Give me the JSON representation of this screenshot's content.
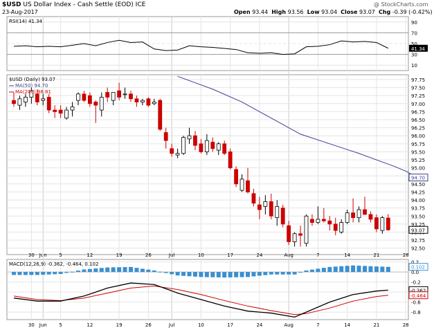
{
  "header": {
    "symbol": "$USD",
    "name": "US Dollar Index - Cash Settle (EOD) ICE",
    "date": "23-Aug-2017",
    "watermark": "@ StockCharts.com",
    "open_label": "Open",
    "open": "93.44",
    "high_label": "High",
    "high": "93.56",
    "low_label": "Low",
    "low": "93.04",
    "close_label": "Close",
    "close": "93.07",
    "chg_label": "Chg",
    "chg": "-0.39 (-0.42%)"
  },
  "rsi_panel": {
    "label": "RSI(14) 41.34",
    "badge": "41.34",
    "ticks": [
      "90",
      "70",
      "50",
      "30",
      "10"
    ]
  },
  "price_panel": {
    "label": "$USD (Daily) 93.07",
    "ma50_label": "MA(50) 94.70",
    "ma200_label": "MA(200) 98.81",
    "ma50_badge": "94.70",
    "close_badge": "93.07",
    "ticks": [
      "97.75",
      "97.50",
      "97.25",
      "97.00",
      "96.75",
      "96.50",
      "96.25",
      "96.00",
      "95.75",
      "95.50",
      "95.25",
      "95.00",
      "94.75",
      "94.50",
      "94.25",
      "94.00",
      "93.75",
      "93.50",
      "93.25",
      "93.00",
      "92.75",
      "92.50"
    ]
  },
  "macd_panel": {
    "label": "MACD(12,26,9) -0.362, -0.464, 0.102",
    "ticks": [
      "0.2",
      "0.0",
      "-0.2",
      "-0.4",
      "-0.6",
      "-0.8"
    ],
    "macd_badge": "-0.362",
    "signal_badge": "-0.464",
    "hist_badge": "0.102"
  },
  "x_labels": [
    "30",
    "Jun",
    "5",
    "12",
    "19",
    "26",
    "Jul",
    "10",
    "17",
    "24",
    "Aug",
    "7",
    "14",
    "21",
    "28"
  ],
  "colors": {
    "up": "#ffffff",
    "down": "#cc0000",
    "ma50": "#3a3f8f",
    "ma200": "#cc0000",
    "macd": "#000000",
    "signal": "#cc0000",
    "hist": "#3a8fd0",
    "rsi_fill": "#7a1a2a"
  },
  "chart_data": [
    {
      "type": "candlestick",
      "title": "$USD (Daily) 93.07",
      "ylim": [
        92.3,
        97.9
      ],
      "series": [
        {
          "name": "MA(50) 94.70",
          "x": [
            29,
            35,
            40,
            45,
            50,
            55,
            60,
            63,
            66,
            68,
            70
          ],
          "values": [
            97.85,
            97.45,
            97.05,
            96.55,
            96.05,
            95.75,
            95.45,
            95.25,
            95.05,
            94.9,
            94.7
          ]
        }
      ],
      "candles": [
        {
          "x": 1,
          "open": 97.1,
          "high": 97.35,
          "low": 96.9,
          "close": 97.0
        },
        {
          "x": 2,
          "open": 96.95,
          "high": 97.25,
          "low": 96.8,
          "close": 97.15
        },
        {
          "x": 3,
          "open": 97.05,
          "high": 97.3,
          "low": 96.9,
          "close": 97.2
        },
        {
          "x": 4,
          "open": 97.2,
          "high": 97.5,
          "low": 97.0,
          "close": 97.4
        },
        {
          "x": 5,
          "open": 97.3,
          "high": 97.45,
          "low": 96.95,
          "close": 97.05
        },
        {
          "x": 6,
          "open": 97.1,
          "high": 97.3,
          "low": 96.95,
          "close": 97.15
        },
        {
          "x": 7,
          "open": 97.2,
          "high": 97.3,
          "low": 96.7,
          "close": 96.8
        },
        {
          "x": 8,
          "open": 96.8,
          "high": 96.95,
          "low": 96.55,
          "close": 96.75
        },
        {
          "x": 9,
          "open": 96.8,
          "high": 96.95,
          "low": 96.55,
          "close": 96.7
        },
        {
          "x": 10,
          "open": 96.55,
          "high": 96.9,
          "low": 96.5,
          "close": 96.8
        },
        {
          "x": 11,
          "open": 96.8,
          "high": 97.05,
          "low": 96.6,
          "close": 96.9
        },
        {
          "x": 12,
          "open": 97.1,
          "high": 97.35,
          "low": 96.95,
          "close": 97.3
        },
        {
          "x": 13,
          "open": 97.3,
          "high": 97.4,
          "low": 97.05,
          "close": 97.1
        },
        {
          "x": 14,
          "open": 97.25,
          "high": 97.35,
          "low": 96.9,
          "close": 97.0
        },
        {
          "x": 15,
          "open": 97.05,
          "high": 97.1,
          "low": 96.4,
          "close": 96.95
        },
        {
          "x": 16,
          "open": 96.8,
          "high": 97.35,
          "low": 96.6,
          "close": 97.2
        },
        {
          "x": 17,
          "open": 97.35,
          "high": 97.5,
          "low": 97.05,
          "close": 97.2
        },
        {
          "x": 18,
          "open": 97.1,
          "high": 97.35,
          "low": 96.95,
          "close": 97.35
        },
        {
          "x": 19,
          "open": 97.4,
          "high": 97.65,
          "low": 97.1,
          "close": 97.2
        },
        {
          "x": 20,
          "open": 97.3,
          "high": 97.5,
          "low": 97.15,
          "close": 97.3
        },
        {
          "x": 21,
          "open": 97.3,
          "high": 97.4,
          "low": 97.05,
          "close": 97.15
        },
        {
          "x": 22,
          "open": 97.15,
          "high": 97.25,
          "low": 96.9,
          "close": 97.05
        },
        {
          "x": 23,
          "open": 97.05,
          "high": 97.15,
          "low": 96.95,
          "close": 97.1
        },
        {
          "x": 24,
          "open": 97.15,
          "high": 97.2,
          "low": 96.9,
          "close": 96.95
        },
        {
          "x": 25,
          "open": 97.0,
          "high": 97.15,
          "low": 96.95,
          "close": 97.05
        },
        {
          "x": 26,
          "open": 97.1,
          "high": 97.15,
          "low": 96.15,
          "close": 96.2
        },
        {
          "x": 27,
          "open": 96.1,
          "high": 96.25,
          "low": 95.6,
          "close": 95.85
        },
        {
          "x": 28,
          "open": 95.6,
          "high": 95.75,
          "low": 95.35,
          "close": 95.45
        },
        {
          "x": 29,
          "open": 95.4,
          "high": 95.6,
          "low": 95.3,
          "close": 95.45
        },
        {
          "x": 30,
          "open": 95.45,
          "high": 96.0,
          "low": 95.4,
          "close": 95.95
        },
        {
          "x": 31,
          "open": 95.9,
          "high": 96.25,
          "low": 95.75,
          "close": 96.0
        },
        {
          "x": 32,
          "open": 96.0,
          "high": 96.15,
          "low": 95.55,
          "close": 95.7
        },
        {
          "x": 33,
          "open": 95.75,
          "high": 95.9,
          "low": 95.45,
          "close": 95.5
        },
        {
          "x": 34,
          "open": 95.5,
          "high": 96.05,
          "low": 95.4,
          "close": 95.85
        },
        {
          "x": 35,
          "open": 95.8,
          "high": 95.95,
          "low": 95.5,
          "close": 95.6
        },
        {
          "x": 36,
          "open": 95.55,
          "high": 95.8,
          "low": 95.4,
          "close": 95.75
        },
        {
          "x": 37,
          "open": 95.75,
          "high": 95.85,
          "low": 95.4,
          "close": 95.45
        },
        {
          "x": 38,
          "open": 95.5,
          "high": 95.6,
          "low": 94.95,
          "close": 95.0
        },
        {
          "x": 39,
          "open": 94.95,
          "high": 95.05,
          "low": 94.4,
          "close": 94.5
        },
        {
          "x": 40,
          "open": 94.3,
          "high": 94.8,
          "low": 94.25,
          "close": 94.65
        },
        {
          "x": 41,
          "open": 94.6,
          "high": 95.0,
          "low": 94.2,
          "close": 94.25
        },
        {
          "x": 42,
          "open": 94.2,
          "high": 94.35,
          "low": 93.8,
          "close": 93.9
        },
        {
          "x": 43,
          "open": 93.85,
          "high": 94.1,
          "low": 93.4,
          "close": 93.7
        },
        {
          "x": 44,
          "open": 93.8,
          "high": 94.15,
          "low": 93.55,
          "close": 93.95
        },
        {
          "x": 45,
          "open": 93.95,
          "high": 94.2,
          "low": 93.4,
          "close": 93.5
        },
        {
          "x": 46,
          "open": 93.45,
          "high": 94.0,
          "low": 93.2,
          "close": 93.8
        },
        {
          "x": 47,
          "open": 93.75,
          "high": 93.85,
          "low": 93.15,
          "close": 93.25
        },
        {
          "x": 48,
          "open": 93.2,
          "high": 93.35,
          "low": 92.6,
          "close": 92.7
        },
        {
          "x": 49,
          "open": 92.7,
          "high": 93.0,
          "low": 92.55,
          "close": 92.95
        },
        {
          "x": 50,
          "open": 92.95,
          "high": 93.2,
          "low": 92.55,
          "close": 92.9
        },
        {
          "x": 51,
          "open": 92.65,
          "high": 93.55,
          "low": 92.55,
          "close": 93.5
        },
        {
          "x": 52,
          "open": 93.4,
          "high": 93.55,
          "low": 93.2,
          "close": 93.3
        },
        {
          "x": 53,
          "open": 93.3,
          "high": 93.8,
          "low": 93.25,
          "close": 93.4
        },
        {
          "x": 54,
          "open": 93.4,
          "high": 93.75,
          "low": 93.3,
          "close": 93.35
        },
        {
          "x": 55,
          "open": 93.35,
          "high": 93.5,
          "low": 93.05,
          "close": 93.25
        },
        {
          "x": 56,
          "open": 93.25,
          "high": 93.45,
          "low": 92.9,
          "close": 93.05
        },
        {
          "x": 57,
          "open": 93.0,
          "high": 93.4,
          "low": 92.95,
          "close": 93.3
        },
        {
          "x": 58,
          "open": 93.3,
          "high": 93.7,
          "low": 93.25,
          "close": 93.6
        },
        {
          "x": 59,
          "open": 93.6,
          "high": 94.05,
          "low": 93.3,
          "close": 93.45
        },
        {
          "x": 60,
          "open": 93.45,
          "high": 93.8,
          "low": 93.3,
          "close": 93.7
        },
        {
          "x": 61,
          "open": 93.7,
          "high": 94.1,
          "low": 93.55,
          "close": 93.55
        },
        {
          "x": 62,
          "open": 93.55,
          "high": 93.65,
          "low": 93.3,
          "close": 93.4
        },
        {
          "x": 63,
          "open": 93.45,
          "high": 93.55,
          "low": 93.0,
          "close": 93.1
        },
        {
          "x": 64,
          "open": 93.05,
          "high": 93.5,
          "low": 92.95,
          "close": 93.45
        },
        {
          "x": 65,
          "open": 93.44,
          "high": 93.56,
          "low": 93.04,
          "close": 93.07
        }
      ]
    },
    {
      "type": "line",
      "title": "RSI(14) 41.34",
      "ylim": [
        0,
        100
      ],
      "x": [
        1,
        3,
        5,
        7,
        9,
        11,
        13,
        15,
        17,
        19,
        21,
        23,
        25,
        27,
        29,
        31,
        33,
        35,
        37,
        39,
        41,
        43,
        45,
        47,
        49,
        51,
        53,
        55,
        57,
        59,
        61,
        63,
        65
      ],
      "values": [
        45,
        46,
        44,
        45,
        44,
        47,
        50,
        46,
        52,
        56,
        52,
        53,
        40,
        37,
        38,
        46,
        44,
        43,
        41,
        39,
        33,
        32,
        33,
        30,
        31,
        44,
        45,
        48,
        55,
        53,
        54,
        52,
        41.34
      ]
    },
    {
      "type": "line",
      "title": "MACD(12,26,9) -0.362, -0.464, 0.102",
      "ylim": [
        -0.95,
        0.25
      ],
      "series": [
        {
          "name": "MACD",
          "x": [
            1,
            5,
            9,
            13,
            17,
            21,
            25,
            29,
            33,
            37,
            41,
            45,
            49,
            51,
            55,
            59,
            63,
            65
          ],
          "values": [
            -0.52,
            -0.58,
            -0.58,
            -0.48,
            -0.32,
            -0.22,
            -0.25,
            -0.42,
            -0.55,
            -0.68,
            -0.78,
            -0.82,
            -0.9,
            -0.8,
            -0.6,
            -0.45,
            -0.38,
            -0.362
          ]
        },
        {
          "name": "Signal",
          "x": [
            1,
            5,
            9,
            13,
            17,
            21,
            25,
            29,
            33,
            37,
            41,
            45,
            49,
            51,
            55,
            59,
            63,
            65
          ],
          "values": [
            -0.48,
            -0.55,
            -0.57,
            -0.52,
            -0.42,
            -0.32,
            -0.28,
            -0.35,
            -0.45,
            -0.57,
            -0.68,
            -0.77,
            -0.85,
            -0.83,
            -0.72,
            -0.58,
            -0.49,
            -0.464
          ]
        },
        {
          "name": "Histogram",
          "x": [
            1,
            5,
            9,
            13,
            17,
            21,
            25,
            29,
            33,
            37,
            41,
            45,
            49,
            51,
            55,
            59,
            63,
            65
          ],
          "values": [
            -0.06,
            -0.06,
            -0.04,
            0.05,
            0.09,
            0.1,
            0.03,
            -0.07,
            -0.1,
            -0.11,
            -0.1,
            -0.05,
            -0.05,
            0.03,
            0.1,
            0.13,
            0.11,
            0.102
          ]
        }
      ]
    }
  ]
}
